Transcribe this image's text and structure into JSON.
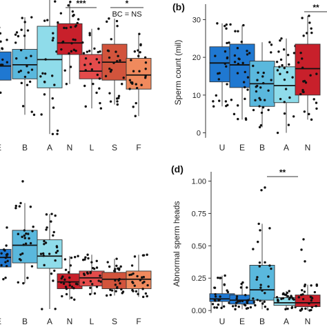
{
  "chart_data": [
    {
      "id": "a",
      "type": "box",
      "panel_label": "",
      "ylabel": "",
      "categories": [
        "E",
        "B",
        "A",
        "N",
        "L",
        "S",
        "F"
      ],
      "ylim": [
        0,
        1
      ],
      "yticks": [],
      "colors": [
        "#1f78d1",
        "#5ab8dd",
        "#8fdcea",
        "#c8202b",
        "#e44b4b",
        "#d2543c",
        "#f08a5d"
      ],
      "boxes": [
        {
          "q1": 0.44,
          "median": 0.55,
          "q3": 0.66,
          "whislo": 0.18,
          "whishi": 0.85
        },
        {
          "q1": 0.45,
          "median": 0.56,
          "q3": 0.68,
          "whislo": 0.17,
          "whishi": 0.93
        },
        {
          "q1": 0.38,
          "median": 0.6,
          "q3": 0.86,
          "whislo": 0.02,
          "whishi": 1.17
        },
        {
          "q1": 0.64,
          "median": 0.73,
          "q3": 0.88,
          "whislo": 0.41,
          "whishi": 1.05
        },
        {
          "q1": 0.45,
          "median": 0.51,
          "q3": 0.64,
          "whislo": 0.22,
          "whishi": 0.84
        },
        {
          "q1": 0.44,
          "median": 0.58,
          "q3": 0.72,
          "whislo": 0.25,
          "whishi": 0.92
        },
        {
          "q1": 0.37,
          "median": 0.48,
          "q3": 0.61,
          "whislo": 0.16,
          "whishi": 0.8
        }
      ],
      "points_per_group": 26,
      "significance": [
        {
          "from": 3,
          "to": 4,
          "label": "***"
        },
        {
          "from": 5,
          "to": 6,
          "label": "*",
          "note": "BC = NS"
        }
      ]
    },
    {
      "id": "b",
      "type": "box",
      "panel_label": "(b)",
      "ylabel": "Sperm count (mil)",
      "categories": [
        "U",
        "E",
        "B",
        "A",
        "N"
      ],
      "ylim": [
        -1,
        33
      ],
      "yticks": [
        0,
        10,
        20,
        30
      ],
      "colors": [
        "#1f78d1",
        "#1f78d1",
        "#5ab8dd",
        "#8fdcea",
        "#c8202b"
      ],
      "boxes": [
        {
          "q1": 13.5,
          "median": 18.5,
          "q3": 22.8,
          "whislo": 7,
          "whishi": 29
        },
        {
          "q1": 12.0,
          "median": 18.0,
          "q3": 23.5,
          "whislo": 3.5,
          "whishi": 28.5
        },
        {
          "q1": 7.0,
          "median": 13.0,
          "q3": 19.0,
          "whislo": 1.5,
          "whishi": 24
        },
        {
          "q1": 8.0,
          "median": 12.5,
          "q3": 17.5,
          "whislo": 0,
          "whishi": 25
        },
        {
          "q1": 10.0,
          "median": 17.0,
          "q3": 23.5,
          "whislo": 3.5,
          "whishi": 31
        }
      ],
      "points_per_group": 26,
      "significance": [
        {
          "from": 4,
          "to": 5,
          "label": "**"
        }
      ]
    },
    {
      "id": "c",
      "type": "box",
      "panel_label": "",
      "ylabel": "",
      "categories": [
        "E",
        "B",
        "A",
        "N",
        "L",
        "S",
        "F"
      ],
      "ylim": [
        0,
        1
      ],
      "yticks": [],
      "colors": [
        "#1f78d1",
        "#5ab8dd",
        "#8fdcea",
        "#c8202b",
        "#e44b4b",
        "#d2543c",
        "#f08a5d"
      ],
      "boxes": [
        {
          "q1": 0.33,
          "median": 0.4,
          "q3": 0.46,
          "whislo": 0.24,
          "whishi": 0.62
        },
        {
          "q1": 0.36,
          "median": 0.49,
          "q3": 0.6,
          "whislo": 0.21,
          "whishi": 0.8
        },
        {
          "q1": 0.32,
          "median": 0.41,
          "q3": 0.53,
          "whislo": 0.02,
          "whishi": 0.72
        },
        {
          "q1": 0.17,
          "median": 0.22,
          "q3": 0.28,
          "whislo": 0.09,
          "whishi": 0.41
        },
        {
          "q1": 0.19,
          "median": 0.25,
          "q3": 0.3,
          "whislo": 0.13,
          "whishi": 0.42
        },
        {
          "q1": 0.17,
          "median": 0.24,
          "q3": 0.29,
          "whislo": 0.12,
          "whishi": 0.39
        },
        {
          "q1": 0.17,
          "median": 0.24,
          "q3": 0.3,
          "whislo": 0.11,
          "whishi": 0.42
        }
      ],
      "points_per_group": 26,
      "significance": []
    },
    {
      "id": "d",
      "type": "box",
      "panel_label": "(d)",
      "ylabel": "Abnormal sperm heads",
      "categories": [
        "U",
        "E",
        "B",
        "A",
        "N"
      ],
      "ylim": [
        -0.01,
        1.04
      ],
      "yticks": [
        0.0,
        0.25,
        0.5,
        0.75,
        1.0
      ],
      "ytick_labels": [
        "0.00",
        "0.25",
        "0.50",
        "0.75",
        "1.00"
      ],
      "colors": [
        "#1f78d1",
        "#1f78d1",
        "#5ab8dd",
        "#8fdcea",
        "#c8202b"
      ],
      "boxes": [
        {
          "q1": 0.07,
          "median": 0.09,
          "q3": 0.13,
          "whislo": 0.02,
          "whishi": 0.27
        },
        {
          "q1": 0.05,
          "median": 0.08,
          "q3": 0.12,
          "whislo": 0.01,
          "whishi": 0.22
        },
        {
          "q1": 0.08,
          "median": 0.16,
          "q3": 0.35,
          "whislo": 0.01,
          "whishi": 0.67
        },
        {
          "q1": 0.04,
          "median": 0.06,
          "q3": 0.1,
          "whislo": 0.01,
          "whishi": 0.15
        },
        {
          "q1": 0.03,
          "median": 0.06,
          "q3": 0.12,
          "whislo": 0.0,
          "whishi": 0.2
        }
      ],
      "points_per_group": 26,
      "significance": [
        {
          "from": 2,
          "to": 3,
          "label": "**"
        }
      ]
    }
  ]
}
